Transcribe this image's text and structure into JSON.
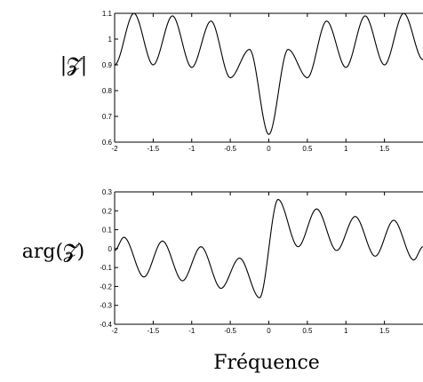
{
  "chart_data": [
    {
      "type": "line",
      "ylabel": "|𝓩|",
      "xlabel": "",
      "xlim": [
        -2,
        2
      ],
      "ylim": [
        0.6,
        1.1
      ],
      "xticks": [
        -2,
        -1.5,
        -1,
        -0.5,
        0,
        0.5,
        1,
        1.5
      ],
      "xtick_labels": [
        "-2",
        "-1.5",
        "-1",
        "-0.5",
        "0",
        "0.5",
        "1",
        "1.5"
      ],
      "yticks": [
        0.6,
        0.7,
        0.8,
        0.9,
        1,
        1.1
      ],
      "ytick_labels": [
        "0.6",
        "0.7",
        "0.8",
        "0.9",
        "1",
        "1.1"
      ],
      "grid": false,
      "series": [
        {
          "x": [
            -2.0,
            -1.75,
            -1.5,
            -1.25,
            -1.0,
            -0.75,
            -0.5,
            -0.25,
            0.0,
            0.25,
            0.5,
            0.75,
            1.0,
            1.25,
            1.5,
            1.75,
            2.0
          ],
          "y": [
            0.9,
            1.1,
            0.9,
            1.09,
            0.89,
            1.07,
            0.85,
            0.96,
            0.63,
            0.96,
            0.85,
            1.07,
            0.89,
            1.09,
            0.9,
            1.1,
            0.92
          ]
        }
      ]
    },
    {
      "type": "line",
      "ylabel": "arg(𝓩)",
      "xlabel": "Fréquence",
      "xlim": [
        -2,
        2
      ],
      "ylim": [
        -0.4,
        0.3
      ],
      "xticks": [
        -2,
        -1.5,
        -1,
        -0.5,
        0,
        0.5,
        1,
        1.5
      ],
      "xtick_labels": [
        "-2",
        "-1.5",
        "-1",
        "-0.5",
        "0",
        "0.5",
        "1",
        "1.5"
      ],
      "yticks": [
        -0.4,
        -0.3,
        -0.2,
        -0.1,
        0,
        0.1,
        0.2,
        0.3
      ],
      "ytick_labels": [
        "-0.4",
        "-0.3",
        "-0.2",
        "-0.1",
        "0",
        "0.1",
        "0.2",
        "0.3"
      ],
      "grid": false,
      "series": [
        {
          "x": [
            -2.0,
            -1.88,
            -1.62,
            -1.38,
            -1.12,
            -0.88,
            -0.62,
            -0.38,
            -0.12,
            0.12,
            0.38,
            0.62,
            0.88,
            1.12,
            1.38,
            1.62,
            1.88,
            2.0
          ],
          "y": [
            -0.01,
            0.06,
            -0.15,
            0.04,
            -0.17,
            0.01,
            -0.21,
            -0.05,
            -0.26,
            0.26,
            0.01,
            0.21,
            -0.01,
            0.17,
            -0.04,
            0.15,
            -0.06,
            0.01
          ]
        }
      ]
    }
  ]
}
